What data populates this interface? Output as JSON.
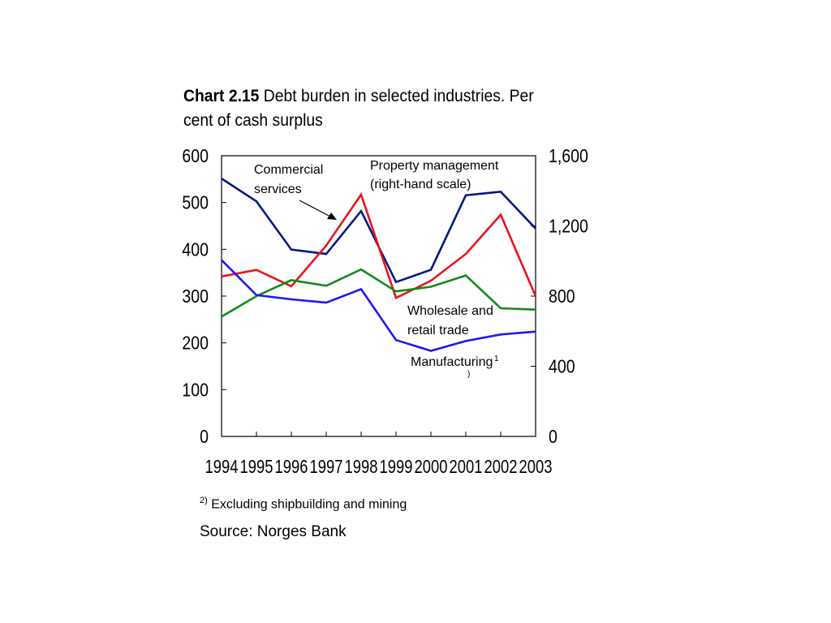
{
  "title": {
    "label": "Chart 2.15",
    "text": "Debt burden in selected industries. Per cent of cash surplus"
  },
  "footnote": {
    "marker": "2)",
    "text": "Excluding shipbuilding and mining"
  },
  "source": "Source: Norges Bank",
  "chart_data": {
    "type": "line",
    "x": [
      "1994",
      "1995",
      "1996",
      "1997",
      "1998",
      "1999",
      "2000",
      "2001",
      "2002",
      "2003"
    ],
    "y_left": {
      "ylim": [
        0,
        600
      ],
      "ticks": [
        "0",
        "100",
        "200",
        "300",
        "400",
        "500",
        "600"
      ]
    },
    "y_right": {
      "ylim": [
        0,
        1600
      ],
      "ticks": [
        "0",
        "400",
        "800",
        "1,200",
        "1,600"
      ]
    },
    "grid": false,
    "series": [
      {
        "key": "property",
        "axis": "right",
        "color": "#001a80",
        "values": [
          1470,
          1340,
          1065,
          1040,
          1285,
          880,
          950,
          1375,
          1395,
          1185
        ]
      },
      {
        "key": "commercial",
        "axis": "left",
        "color": "#e8141e",
        "values": [
          342,
          356,
          321,
          408,
          517,
          296,
          333,
          390,
          474,
          300
        ]
      },
      {
        "key": "wholesale",
        "axis": "left",
        "color": "#128a1a",
        "values": [
          256,
          300,
          334,
          322,
          357,
          310,
          320,
          344,
          274,
          271
        ]
      },
      {
        "key": "manufacturing",
        "axis": "left",
        "color": "#1a1aee",
        "values": [
          377,
          302,
          293,
          286,
          315,
          206,
          183,
          204,
          218,
          224
        ]
      }
    ],
    "annotations": {
      "commercial_1": "Commercial",
      "commercial_2": "services",
      "property_1": "Property management",
      "property_2": "(right-hand scale)",
      "wholesale_1": "Wholesale and",
      "wholesale_2": "retail trade",
      "manufacturing": "Manufacturing",
      "manufacturing_sup": "1",
      "manufacturing_sup2": ")"
    }
  }
}
